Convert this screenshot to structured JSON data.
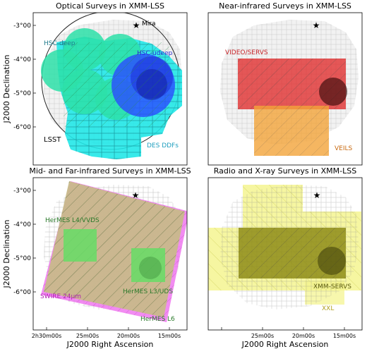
{
  "figure": {
    "y_axis_label": "J2000 Declination",
    "x_axis_label": "J2000 Right Ascension",
    "y_ticks": [
      "-3°00",
      "-4°00",
      "-5°00",
      "-6°00"
    ],
    "x_ticks": [
      "2h30m00s",
      "25m00s",
      "20m00s",
      "15m00s"
    ]
  },
  "panels": [
    {
      "title": "Optical Surveys in XMM-LSS",
      "labels": [
        {
          "text": "Mira",
          "color": "#000000"
        },
        {
          "text": "HSC-deep",
          "color": "#1f7a8c"
        },
        {
          "text": "HSC-udeep",
          "color": "#2b2bd6"
        },
        {
          "text": "LSST",
          "color": "#000000"
        },
        {
          "text": "DES DDFs",
          "color": "#1f9fbf"
        }
      ]
    },
    {
      "title": "Near-infrared Surveys in XMM-LSS",
      "labels": [
        {
          "text": "VIDEO/SERVS",
          "color": "#c8252a"
        },
        {
          "text": "VEILS",
          "color": "#c86a10"
        }
      ]
    },
    {
      "title": "Mid- and Far-infrared Surveys in XMM-LSS",
      "labels": [
        {
          "text": "HerMES L4/VVDS",
          "color": "#2a7a2a"
        },
        {
          "text": "SWIRE 24μm",
          "color": "#b01fb0"
        },
        {
          "text": "HerMES L3/UDS",
          "color": "#2a7a2a"
        },
        {
          "text": "HerMES L6",
          "color": "#2a7a2a"
        }
      ]
    },
    {
      "title": "Radio and X-ray Surveys in XMM-LSS",
      "labels": [
        {
          "text": "XMM-SERVS",
          "color": "#5f5f10"
        },
        {
          "text": "XXL",
          "color": "#b0a020"
        }
      ]
    }
  ],
  "colors": {
    "footprint": "#9a9a9a",
    "hsc_deep": "#2de0a8",
    "hsc_udeep": "#2b4bff",
    "des": "#22e8e8",
    "video": "#e03030",
    "veils": "#f2a43a",
    "swire": "#ee66ee",
    "hermes_large": "#c8b98a",
    "hermes_small": "#66dd66",
    "xxl": "#f4f48a",
    "xmm_servs": "#8e8c18"
  }
}
